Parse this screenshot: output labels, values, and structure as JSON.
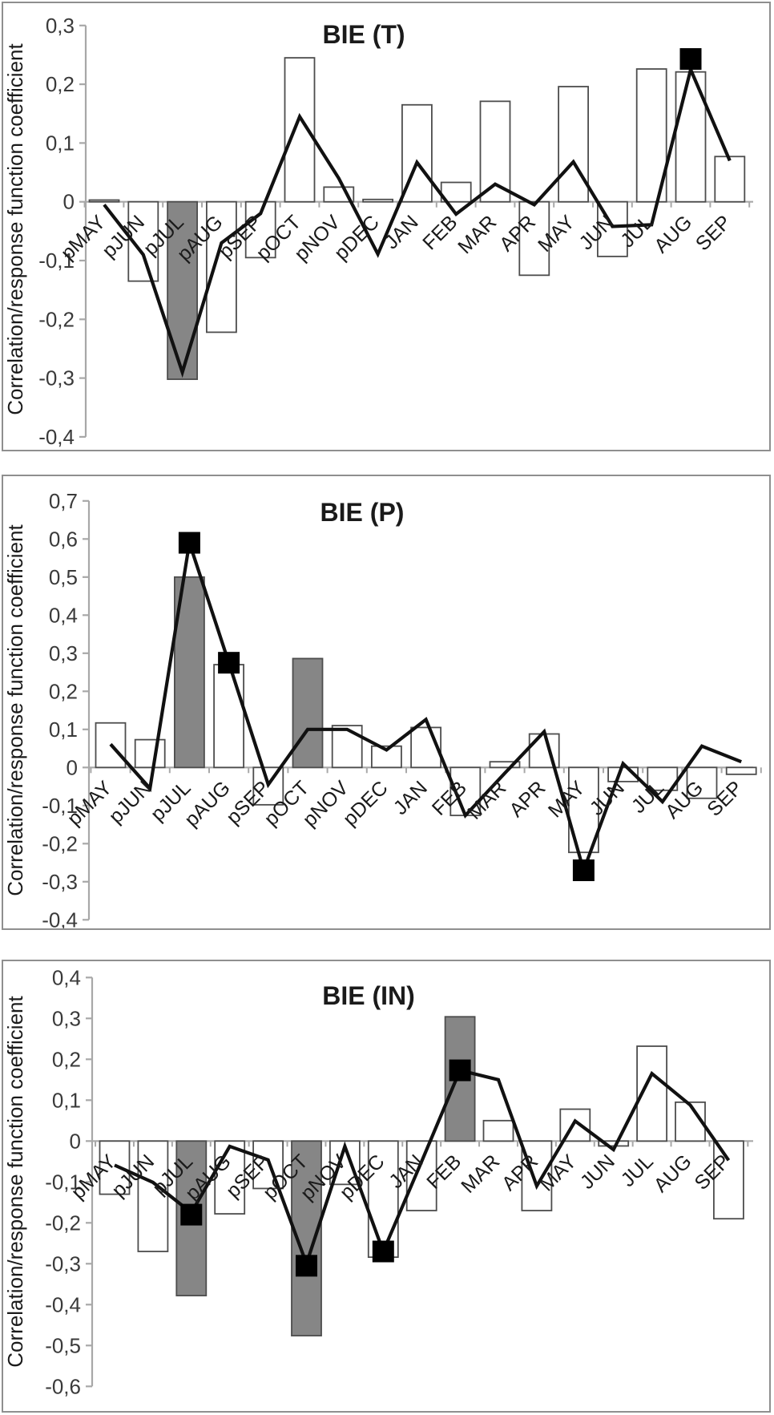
{
  "figure": {
    "y_axis_title": "Correlation/response function coefficient"
  },
  "chart_data": [
    {
      "type": "bar+line",
      "title": "BIE (T)",
      "ylabel": "Correlation/response function coefficient",
      "ylim": [
        -0.4,
        0.3
      ],
      "grid": false,
      "ytick_values": [
        0.3,
        0.2,
        0.1,
        0,
        -0.1,
        -0.2,
        -0.3,
        -0.4
      ],
      "ytick_labels": [
        "0,3",
        "0,2",
        "0,1",
        "0",
        "-0,1",
        "-0,2",
        "-0,3",
        "-0,4"
      ],
      "categories": [
        "pMAY",
        "pJUN",
        "pJUL",
        "pAUG",
        "pSEP",
        "pOCT",
        "pNOV",
        "pDEC",
        "JAN",
        "FEB",
        "MAR",
        "APR",
        "MAY",
        "JUN",
        "JUL",
        "AUG",
        "SEP"
      ],
      "bar_values": [
        0.003,
        -0.135,
        -0.302,
        -0.222,
        -0.095,
        0.245,
        0.025,
        0.004,
        0.165,
        0.033,
        0.171,
        -0.125,
        0.196,
        -0.093,
        0.226,
        0.221,
        0.077
      ],
      "gray_bar_categories": [
        "pJUL"
      ],
      "line_values": [
        -0.005,
        -0.09,
        -0.29,
        -0.07,
        -0.02,
        0.145,
        0.04,
        -0.089,
        0.067,
        -0.021,
        0.03,
        -0.005,
        0.068,
        -0.042,
        -0.039,
        0.225,
        0.07
      ],
      "significance_markers": [
        {
          "category": "AUG",
          "value": 0.243
        }
      ],
      "colors": {
        "gray_bar": "#868686",
        "white_bar": "#ffffff",
        "bar_outline": "#4d4d4d",
        "line": "#111111",
        "marker": "#000000",
        "axis": "#a8a8a8",
        "tick_text": "#3a3a3a",
        "title_text": "#1a1a1a"
      }
    },
    {
      "type": "bar+line",
      "title": "BIE (P)",
      "ylabel": "Correlation/response function coefficient",
      "ylim": [
        -0.4,
        0.7
      ],
      "grid": false,
      "ytick_values": [
        0.7,
        0.6,
        0.5,
        0.4,
        0.3,
        0.2,
        0.1,
        0,
        -0.1,
        -0.2,
        -0.3,
        -0.4
      ],
      "ytick_labels": [
        "0,7",
        "0,6",
        "0,5",
        "0,4",
        "0,3",
        "0,2",
        "0,1",
        "0",
        "-0,1",
        "-0,2",
        "-0,3",
        "-0,4"
      ],
      "categories": [
        "pMAY",
        "pJUN",
        "pJUL",
        "pAUG",
        "pSEP",
        "pOCT",
        "pNOV",
        "pDEC",
        "JAN",
        "FEB",
        "MAR",
        "APR",
        "MAY",
        "JUN",
        "JUL",
        "AUG",
        "SEP"
      ],
      "bar_values": [
        0.117,
        0.073,
        0.5,
        0.27,
        -0.098,
        0.286,
        0.11,
        0.056,
        0.105,
        -0.126,
        0.015,
        0.088,
        -0.223,
        -0.037,
        -0.06,
        -0.081,
        -0.018
      ],
      "gray_bar_categories": [
        "pJUL",
        "pOCT"
      ],
      "line_values": [
        0.061,
        -0.055,
        0.59,
        0.275,
        -0.045,
        0.1,
        0.1,
        0.046,
        0.126,
        -0.126,
        -0.015,
        0.094,
        -0.27,
        0.01,
        -0.09,
        0.056,
        0.015
      ],
      "significance_markers": [
        {
          "category": "pJUL",
          "value": 0.59
        },
        {
          "category": "pAUG",
          "value": 0.275
        },
        {
          "category": "MAY",
          "value": -0.27
        }
      ],
      "colors": {
        "gray_bar": "#868686",
        "white_bar": "#ffffff",
        "bar_outline": "#4d4d4d",
        "line": "#111111",
        "marker": "#000000",
        "axis": "#a8a8a8",
        "tick_text": "#3a3a3a",
        "title_text": "#1a1a1a"
      }
    },
    {
      "type": "bar+line",
      "title": "BIE (IN)",
      "ylabel": "Correlation/response function coefficient",
      "ylim": [
        -0.6,
        0.4
      ],
      "grid": false,
      "ytick_values": [
        0.4,
        0.3,
        0.2,
        0.1,
        0,
        -0.1,
        -0.2,
        -0.3,
        -0.4,
        -0.5,
        -0.6
      ],
      "ytick_labels": [
        "0,4",
        "0,3",
        "0,2",
        "0,1",
        "0",
        "-0,1",
        "-0,2",
        "-0,3",
        "-0,4",
        "-0,5",
        "-0,6"
      ],
      "categories": [
        "pMAY",
        "pJUN",
        "pJUL",
        "pAUG",
        "pSEP",
        "pOCT",
        "pNOV",
        "pDEC",
        "JAN",
        "FEB",
        "MAR",
        "APR",
        "MAY",
        "JUN",
        "JUL",
        "AUG",
        "SEP"
      ],
      "bar_values": [
        -0.13,
        -0.27,
        -0.378,
        -0.178,
        -0.116,
        -0.476,
        -0.106,
        -0.284,
        -0.17,
        0.304,
        0.05,
        -0.17,
        0.078,
        -0.012,
        0.232,
        0.095,
        -0.19
      ],
      "gray_bar_categories": [
        "pJUL",
        "pOCT",
        "FEB"
      ],
      "line_values": [
        -0.059,
        -0.101,
        -0.175,
        -0.013,
        -0.046,
        -0.3,
        -0.013,
        -0.27,
        -0.05,
        0.173,
        0.15,
        -0.11,
        0.049,
        -0.021,
        0.165,
        0.088,
        -0.047
      ],
      "significance_markers": [
        {
          "category": "pJUL",
          "value": -0.18
        },
        {
          "category": "pOCT",
          "value": -0.305
        },
        {
          "category": "pDEC",
          "value": -0.27
        },
        {
          "category": "FEB",
          "value": 0.173
        }
      ],
      "colors": {
        "gray_bar": "#868686",
        "white_bar": "#ffffff",
        "bar_outline": "#4d4d4d",
        "line": "#111111",
        "marker": "#000000",
        "axis": "#a8a8a8",
        "tick_text": "#3a3a3a",
        "title_text": "#1a1a1a"
      }
    }
  ]
}
